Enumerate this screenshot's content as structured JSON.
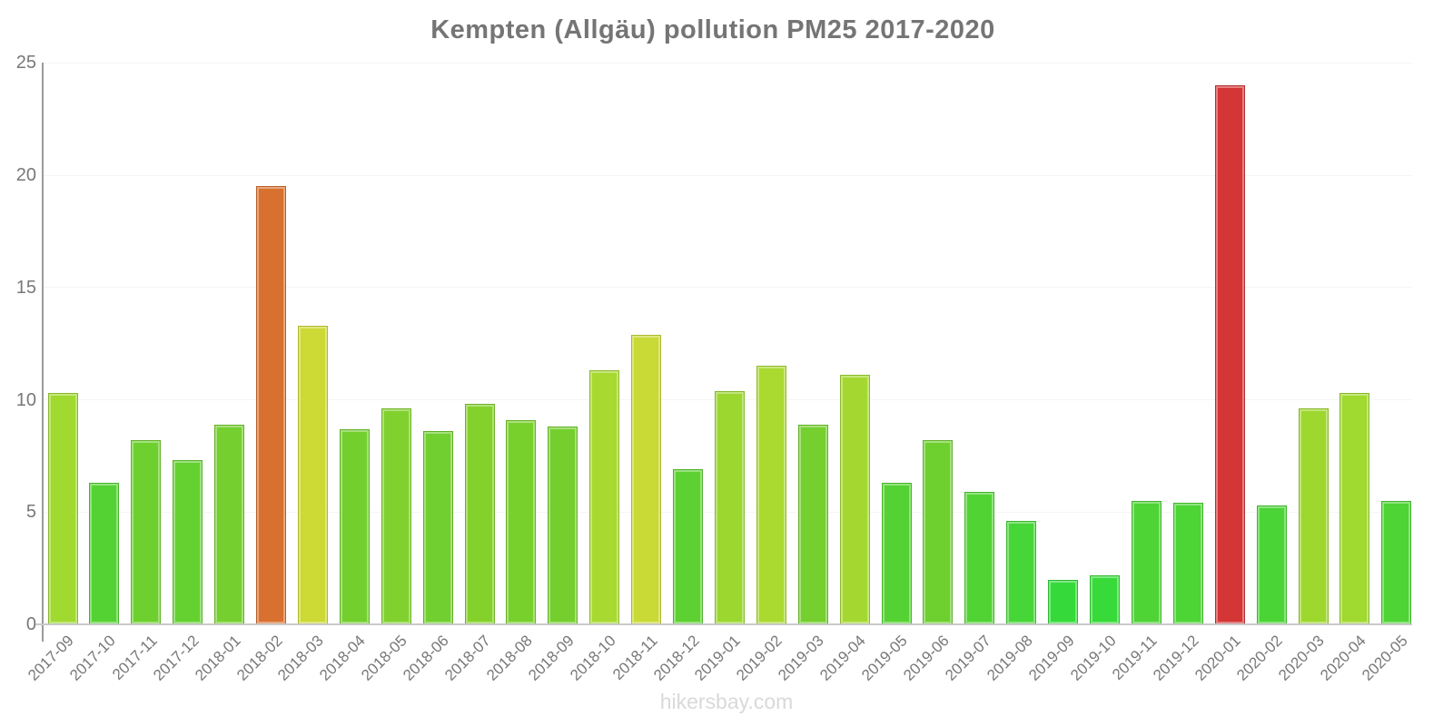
{
  "page": {
    "title": "Kempten (Allgäu) pollution PM25 2017-2020",
    "watermark": "hikersbay.com"
  },
  "chart_data": {
    "type": "bar",
    "title": "Kempten (Allgäu) pollution PM25 2017-2020",
    "xlabel": "",
    "ylabel": "",
    "ylim": [
      0,
      25
    ],
    "yticks": [
      0,
      5,
      10,
      15,
      20,
      25
    ],
    "grid": true,
    "legend_position": "none",
    "categories": [
      "2017-09",
      "2017-10",
      "2017-11",
      "2017-12",
      "2018-01",
      "2018-02",
      "2018-03",
      "2018-04",
      "2018-05",
      "2018-06",
      "2018-07",
      "2018-08",
      "2018-09",
      "2018-10",
      "2018-11",
      "2018-12",
      "2019-01",
      "2019-02",
      "2019-03",
      "2019-04",
      "2019-05",
      "2019-06",
      "2019-07",
      "2019-08",
      "2019-09",
      "2019-10",
      "2019-11",
      "2019-12",
      "2020-01",
      "2020-02",
      "2020-03",
      "2020-04",
      "2020-05"
    ],
    "values": [
      10.3,
      6.3,
      8.2,
      7.3,
      8.9,
      19.5,
      13.3,
      8.7,
      9.6,
      8.6,
      9.8,
      9.1,
      8.8,
      11.3,
      12.9,
      6.9,
      10.4,
      11.5,
      8.9,
      11.1,
      6.3,
      8.2,
      5.9,
      4.6,
      2.0,
      2.2,
      5.5,
      5.4,
      24.0,
      5.3,
      9.6,
      10.3,
      5.5
    ],
    "bar_colors": [
      "#a0d930",
      "#55d233",
      "#6ed02f",
      "#64d131",
      "#75cf2e",
      "#d8712f",
      "#cdd934",
      "#73cf2e",
      "#80d12d",
      "#71cf2f",
      "#84d12c",
      "#78d02d",
      "#74cf2e",
      "#a7d930",
      "#c9d935",
      "#5ed132",
      "#9cd72f",
      "#aad930",
      "#75cf2e",
      "#a4d830",
      "#55d233",
      "#6ed02f",
      "#52d334",
      "#47d637",
      "#35da3a",
      "#37da39",
      "#4ed435",
      "#4dd435",
      "#d43535",
      "#4bd435",
      "#9ed72e",
      "#a0d930",
      "#4ed435"
    ],
    "colors": {
      "title_text": "#757575",
      "axis_text": "#787878",
      "watermark_text": "#d9d9d9",
      "y_axis_line": "#9b9b9b",
      "x_axis_line": "#c9c9c9",
      "gridline": "#f5f5f5"
    }
  }
}
